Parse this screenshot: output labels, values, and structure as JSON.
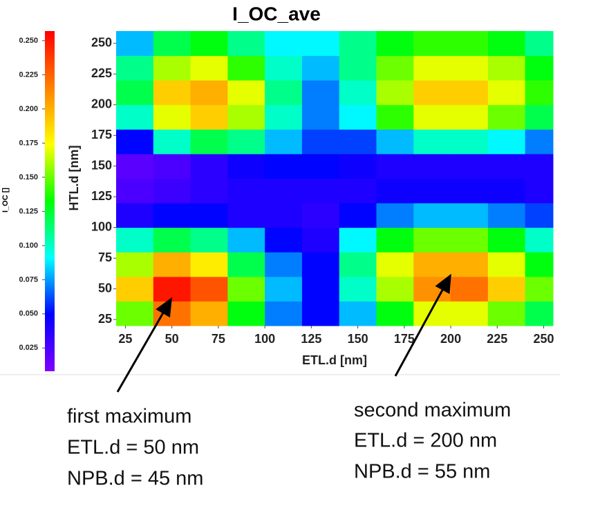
{
  "chart_data": {
    "type": "heatmap",
    "title": "I_OC_ave",
    "xlabel": "ETL.d [nm]",
    "ylabel": "HTL.d [nm]",
    "colorbar_label": "I_OC []",
    "x": [
      30,
      50,
      70,
      90,
      110,
      130,
      150,
      170,
      190,
      210,
      230,
      250
    ],
    "y": [
      30,
      50,
      70,
      90,
      110,
      130,
      150,
      170,
      190,
      210,
      230,
      250
    ],
    "values": [
      [
        0.15,
        0.22,
        0.2,
        0.13,
        0.07,
        0.05,
        0.08,
        0.13,
        0.17,
        0.17,
        0.15,
        0.12
      ],
      [
        0.19,
        0.25,
        0.23,
        0.15,
        0.08,
        0.05,
        0.1,
        0.16,
        0.21,
        0.22,
        0.19,
        0.15
      ],
      [
        0.16,
        0.2,
        0.18,
        0.12,
        0.07,
        0.05,
        0.11,
        0.17,
        0.2,
        0.2,
        0.17,
        0.13
      ],
      [
        0.1,
        0.12,
        0.11,
        0.08,
        0.05,
        0.04,
        0.09,
        0.13,
        0.15,
        0.15,
        0.13,
        0.1
      ],
      [
        0.04,
        0.05,
        0.05,
        0.04,
        0.04,
        0.035,
        0.05,
        0.07,
        0.08,
        0.08,
        0.07,
        0.06
      ],
      [
        0.025,
        0.03,
        0.035,
        0.04,
        0.04,
        0.04,
        0.04,
        0.045,
        0.045,
        0.045,
        0.045,
        0.04
      ],
      [
        0.02,
        0.025,
        0.035,
        0.045,
        0.05,
        0.05,
        0.045,
        0.04,
        0.04,
        0.04,
        0.04,
        0.04
      ],
      [
        0.05,
        0.1,
        0.12,
        0.11,
        0.08,
        0.06,
        0.06,
        0.08,
        0.1,
        0.1,
        0.09,
        0.07
      ],
      [
        0.1,
        0.17,
        0.19,
        0.16,
        0.1,
        0.07,
        0.09,
        0.14,
        0.17,
        0.17,
        0.15,
        0.12
      ],
      [
        0.12,
        0.19,
        0.2,
        0.17,
        0.11,
        0.07,
        0.1,
        0.16,
        0.19,
        0.19,
        0.17,
        0.14
      ],
      [
        0.11,
        0.16,
        0.17,
        0.14,
        0.1,
        0.08,
        0.11,
        0.15,
        0.17,
        0.17,
        0.16,
        0.13
      ],
      [
        0.08,
        0.12,
        0.13,
        0.11,
        0.09,
        0.09,
        0.11,
        0.13,
        0.14,
        0.14,
        0.13,
        0.11
      ]
    ],
    "xlim": [
      20,
      255
    ],
    "ylim": [
      20,
      260
    ],
    "xticks": [
      25,
      50,
      75,
      100,
      125,
      150,
      175,
      200,
      225,
      250
    ],
    "yticks": [
      25,
      50,
      75,
      100,
      125,
      150,
      175,
      200,
      225,
      250
    ],
    "clim": [
      0.008,
      0.257
    ],
    "cticks": [
      0.025,
      {
        "value": 0.05,
        "label": "0.050"
      },
      0.075,
      {
        "value": 0.1,
        "label": "0.100"
      },
      0.125,
      {
        "value": 0.15,
        "label": "0.150"
      },
      0.175,
      {
        "value": 0.2,
        "label": "0.200"
      },
      0.225,
      {
        "value": 0.25,
        "label": "0.250"
      }
    ],
    "colormap": [
      "#7f00ff",
      "#0000ff",
      "#00ffff",
      "#00ff00",
      "#ffff00",
      "#ff8000",
      "#ff0000"
    ],
    "annotations": [
      [
        "first maximum",
        "ETL.d = 50 nm",
        "NPB.d = 45 nm"
      ],
      [
        "second maximum",
        "ETL.d = 200 nm",
        "NPB.d = 55 nm"
      ]
    ]
  }
}
